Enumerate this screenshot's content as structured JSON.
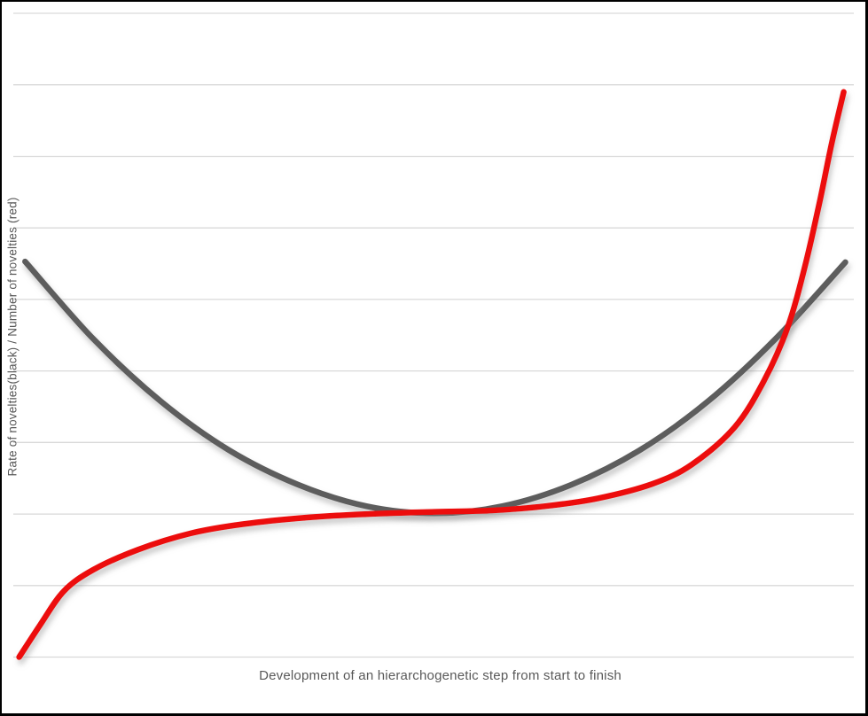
{
  "page": {
    "background": "#ffffff",
    "frame_border_color": "#000000"
  },
  "chart_data": {
    "type": "line",
    "title": "",
    "xlabel": "Development of an hierarchogenetic step from start to finish",
    "ylabel": "Rate of novelties(black) / Number of novelties (red)",
    "axis_label_color": "#595959",
    "x_axis": {
      "range": [
        0,
        1
      ],
      "tick_labels": "none"
    },
    "y_axis": {
      "range_grid_units": [
        0,
        9
      ],
      "tick_labels": "none"
    },
    "grid": {
      "horizontal_lines": 10,
      "vertical_lines": 0,
      "color": "#d9d9d9",
      "line_width": 1.3
    },
    "legend_position": "none",
    "series": [
      {
        "name": "Rate of novelties",
        "color": "#5d5d5d",
        "stroke_width": 6.5,
        "shape": "u-curve",
        "points": [
          [
            0.014,
            5.53
          ],
          [
            0.095,
            4.45
          ],
          [
            0.176,
            3.57
          ],
          [
            0.257,
            2.89
          ],
          [
            0.339,
            2.41
          ],
          [
            0.42,
            2.11
          ],
          [
            0.501,
            2.01
          ],
          [
            0.582,
            2.11
          ],
          [
            0.664,
            2.41
          ],
          [
            0.745,
            2.89
          ],
          [
            0.826,
            3.57
          ],
          [
            0.907,
            4.45
          ],
          [
            0.99,
            5.52
          ]
        ]
      },
      {
        "name": "Number of novelties",
        "color": "#ec1111",
        "stroke_width": 6.5,
        "shape": "s-curve",
        "points": [
          [
            0.007,
            0.0
          ],
          [
            0.032,
            0.45
          ],
          [
            0.06,
            0.92
          ],
          [
            0.095,
            1.22
          ],
          [
            0.148,
            1.5
          ],
          [
            0.211,
            1.73
          ],
          [
            0.274,
            1.86
          ],
          [
            0.348,
            1.95
          ],
          [
            0.422,
            2.0
          ],
          [
            0.501,
            2.03
          ],
          [
            0.57,
            2.05
          ],
          [
            0.633,
            2.11
          ],
          [
            0.696,
            2.22
          ],
          [
            0.76,
            2.42
          ],
          [
            0.807,
            2.69
          ],
          [
            0.858,
            3.21
          ],
          [
            0.893,
            3.86
          ],
          [
            0.921,
            4.6
          ],
          [
            0.942,
            5.47
          ],
          [
            0.96,
            6.4
          ],
          [
            0.974,
            7.2
          ],
          [
            0.988,
            7.9
          ]
        ]
      }
    ]
  }
}
